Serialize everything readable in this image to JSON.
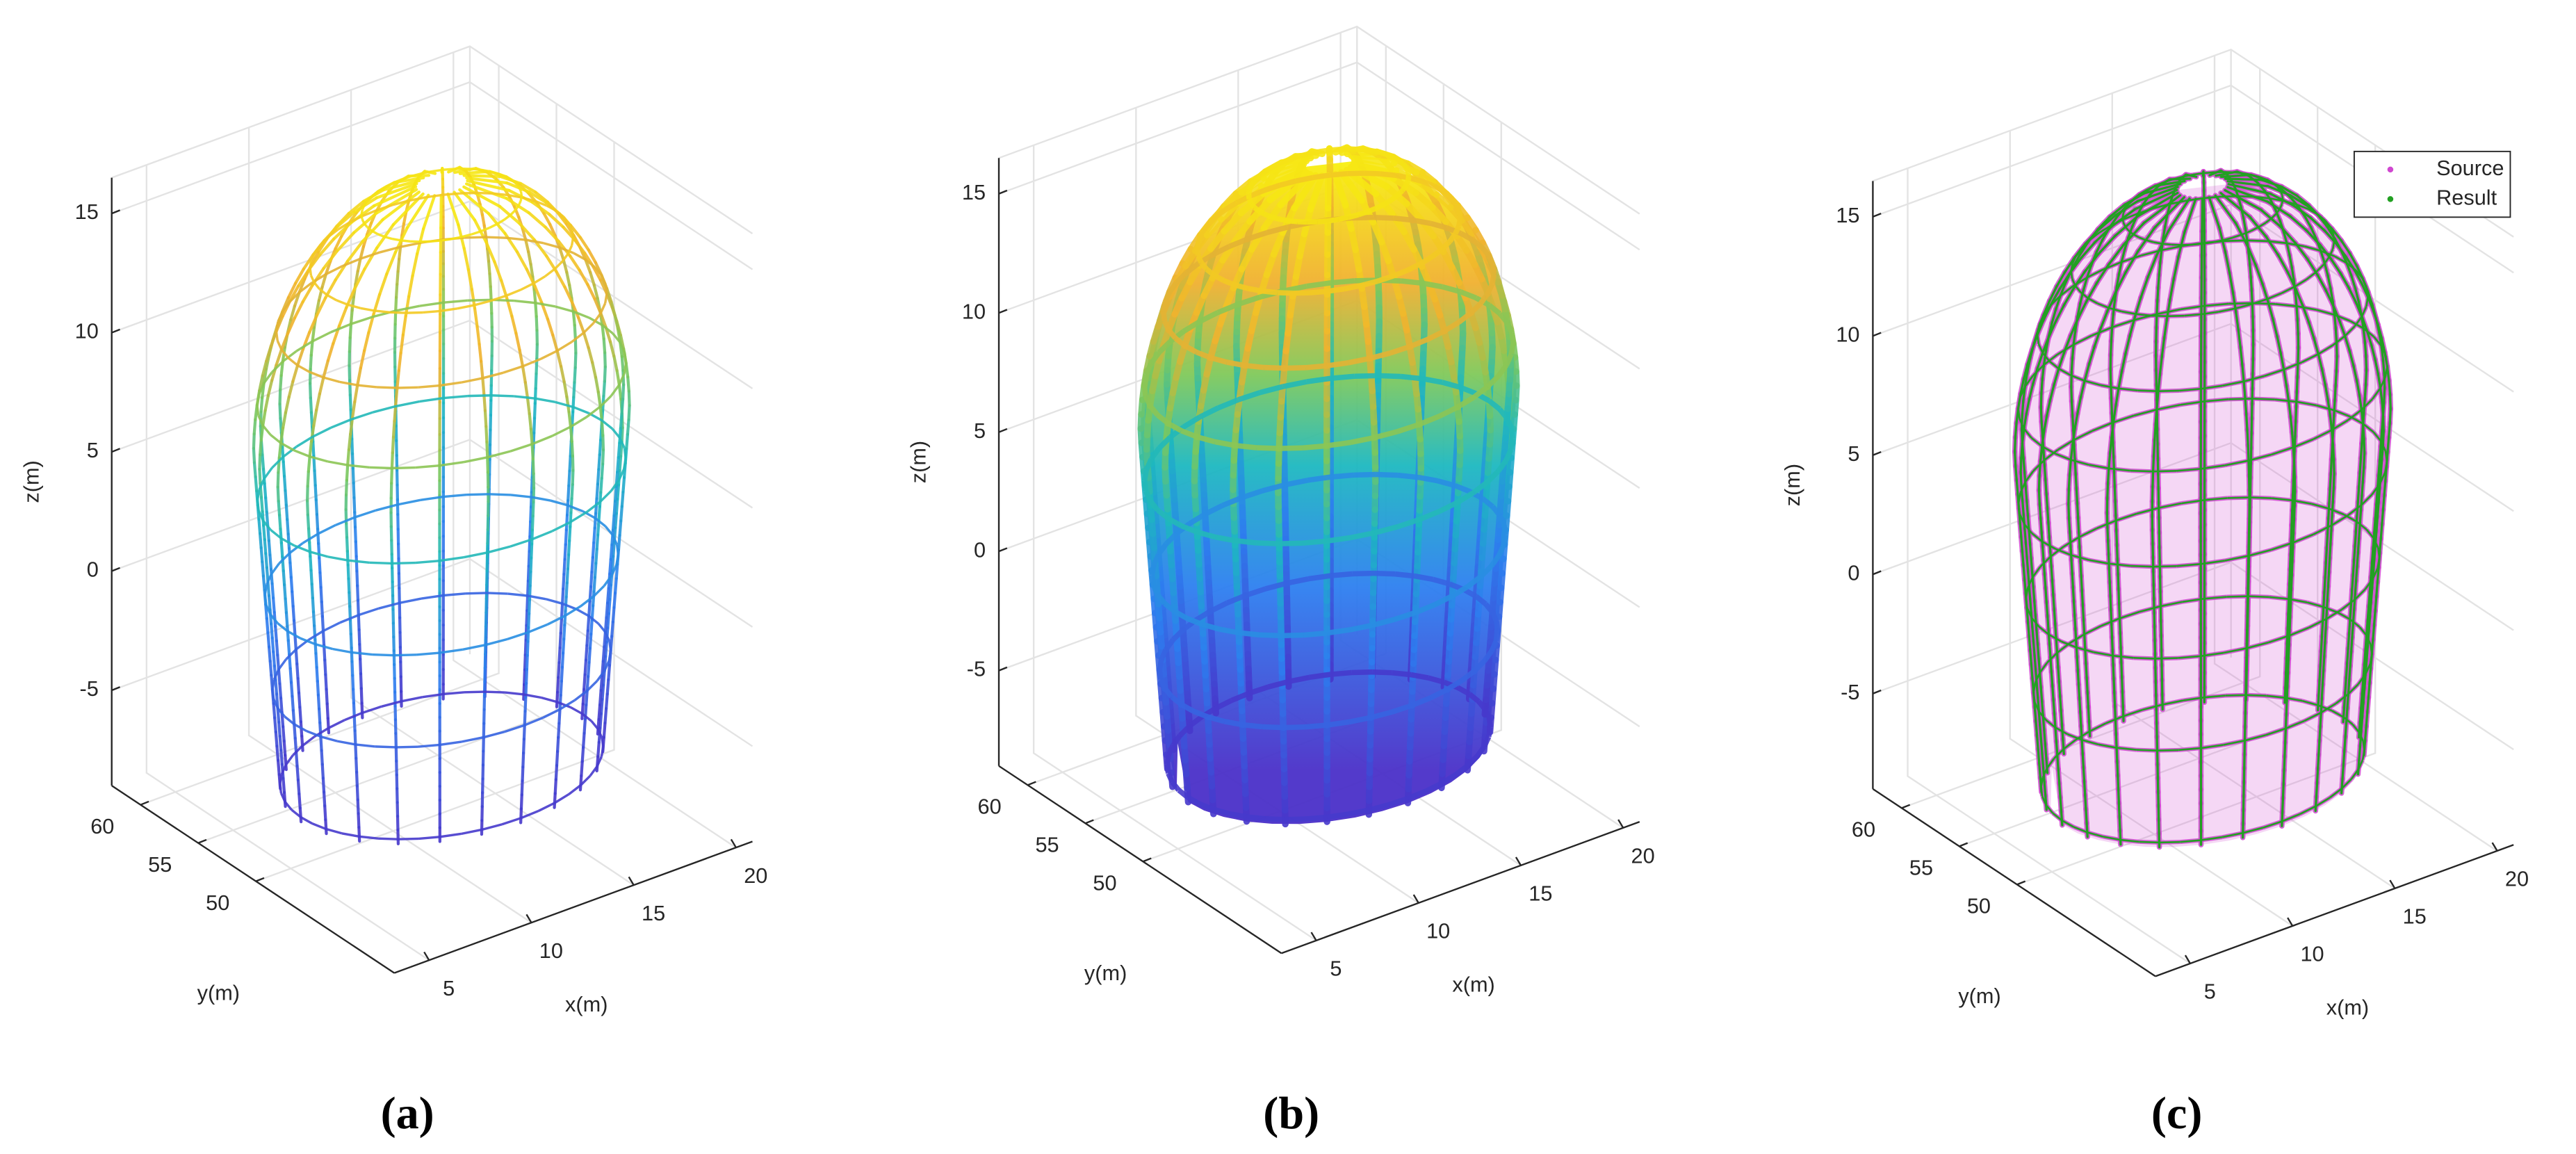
{
  "chart_data": [
    {
      "type": "scatter3d",
      "panel_label": "(a)",
      "xlabel": "x(m)",
      "ylabel": "y(m)",
      "zlabel": "z(m)",
      "xlim": [
        3.3,
        20.8
      ],
      "ylim": [
        38,
        62.5
      ],
      "zlim": [
        -9,
        16.5
      ],
      "xticks": [
        5,
        10,
        15,
        20
      ],
      "yticks": [
        50,
        55,
        60
      ],
      "zticks": [
        -5,
        0,
        5,
        10,
        15
      ],
      "grid": true,
      "colormap": "parula",
      "style": "sparse"
    },
    {
      "type": "scatter3d",
      "panel_label": "(b)",
      "xlabel": "x(m)",
      "ylabel": "y(m)",
      "zlabel": "z(m)",
      "xlim": [
        3.3,
        20.8
      ],
      "ylim": [
        38,
        62.5
      ],
      "zlim": [
        -9,
        16.5
      ],
      "xticks": [
        5,
        10,
        15,
        20
      ],
      "yticks": [
        50,
        55,
        60
      ],
      "zticks": [
        -5,
        0,
        5,
        10,
        15
      ],
      "grid": true,
      "colormap": "parula",
      "style": "dense"
    },
    {
      "type": "scatter3d",
      "panel_label": "(c)",
      "xlabel": "x(m)",
      "ylabel": "y(m)",
      "zlabel": "z(m)",
      "xlim": [
        3.3,
        20.8
      ],
      "ylim": [
        38,
        62.5
      ],
      "zlim": [
        -9,
        16.5
      ],
      "xticks": [
        5,
        10,
        15,
        20
      ],
      "yticks": [
        50,
        55,
        60
      ],
      "zticks": [
        -5,
        0,
        5,
        10,
        15
      ],
      "grid": true,
      "legend": "northeast",
      "series": [
        {
          "name": "Source",
          "color": "#d048d0"
        },
        {
          "name": "Result",
          "color": "#22a022"
        }
      ]
    }
  ]
}
